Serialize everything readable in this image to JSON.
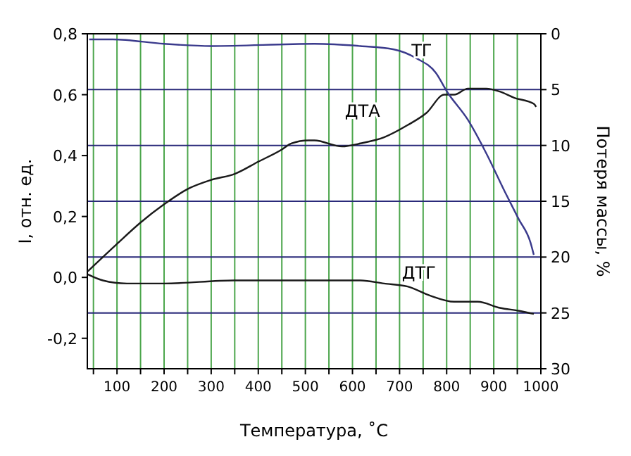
{
  "chart_data": {
    "type": "line",
    "xlabel": "Температура, ˚С",
    "ylabel": "I, отн. ед.",
    "y2label": "Потеря массы, %",
    "xlim": [
      37,
      1000
    ],
    "xticks": [
      {
        "value": 50,
        "label": null
      },
      100,
      {
        "value": 150,
        "label": null
      },
      200,
      {
        "value": 250,
        "label": null
      },
      300,
      {
        "value": 350,
        "label": null
      },
      400,
      {
        "value": 450,
        "label": null
      },
      500,
      {
        "value": 550,
        "label": null
      },
      600,
      {
        "value": 650,
        "label": null
      },
      700,
      {
        "value": 750,
        "label": null
      },
      800,
      {
        "value": 850,
        "label": null
      },
      900,
      {
        "value": 950,
        "label": null
      },
      1000
    ],
    "ylim": [
      -0.3,
      0.8
    ],
    "yticks": [
      {
        "value": -0.2,
        "label": "-0,2"
      },
      {
        "value": 0,
        "label": "0,0"
      },
      {
        "value": 0.2,
        "label": "0,2"
      },
      {
        "value": 0.4,
        "label": "0,4"
      },
      {
        "value": 0.6,
        "label": "0,6"
      },
      {
        "value": 0.8,
        "label": "0,8"
      }
    ],
    "y2lim": [
      30,
      0
    ],
    "y2ticks": [
      0,
      5,
      10,
      15,
      20,
      25,
      30
    ],
    "grid": true,
    "line_style": "solid",
    "marker": "none",
    "series": [
      {
        "name": "ДТА",
        "color": "#1a1a1a",
        "x": [
          38,
          100,
          150,
          200,
          250,
          300,
          350,
          400,
          450,
          470,
          507,
          519,
          578,
          617,
          667,
          717,
          757,
          795,
          816,
          845,
          884,
          913,
          943,
          985,
          990
        ],
        "values": [
          0.02,
          0.11,
          0.18,
          0.24,
          0.29,
          0.32,
          0.34,
          0.38,
          0.42,
          0.44,
          0.45,
          0.45,
          0.43,
          0.44,
          0.46,
          0.5,
          0.54,
          0.6,
          0.6,
          0.62,
          0.62,
          0.61,
          0.59,
          0.57,
          0.56
        ]
      },
      {
        "name": "ТГ",
        "color": "#3a3a8c",
        "axis": "y2",
        "x": [
          41,
          91,
          200,
          300,
          519,
          617,
          688,
          736,
          777,
          801,
          845,
          884,
          923,
          953,
          978,
          985
        ],
        "values": [
          0.5,
          0.5,
          0.9,
          1.1,
          0.9,
          1.1,
          1.4,
          2.2,
          3.5,
          5.2,
          7.7,
          10.7,
          14.1,
          16.6,
          18.7,
          19.8
        ]
      },
      {
        "name": "ДТГ",
        "color": "#1a1a1a",
        "x": [
          38,
          70,
          121,
          200,
          349,
          507,
          617,
          667,
          717,
          765,
          816,
          866,
          913,
          954,
          985
        ],
        "values": [
          0.01,
          -0.01,
          -0.02,
          -0.02,
          -0.01,
          -0.01,
          -0.01,
          -0.02,
          -0.03,
          -0.06,
          -0.08,
          -0.08,
          -0.1,
          -0.11,
          -0.12
        ]
      }
    ]
  }
}
